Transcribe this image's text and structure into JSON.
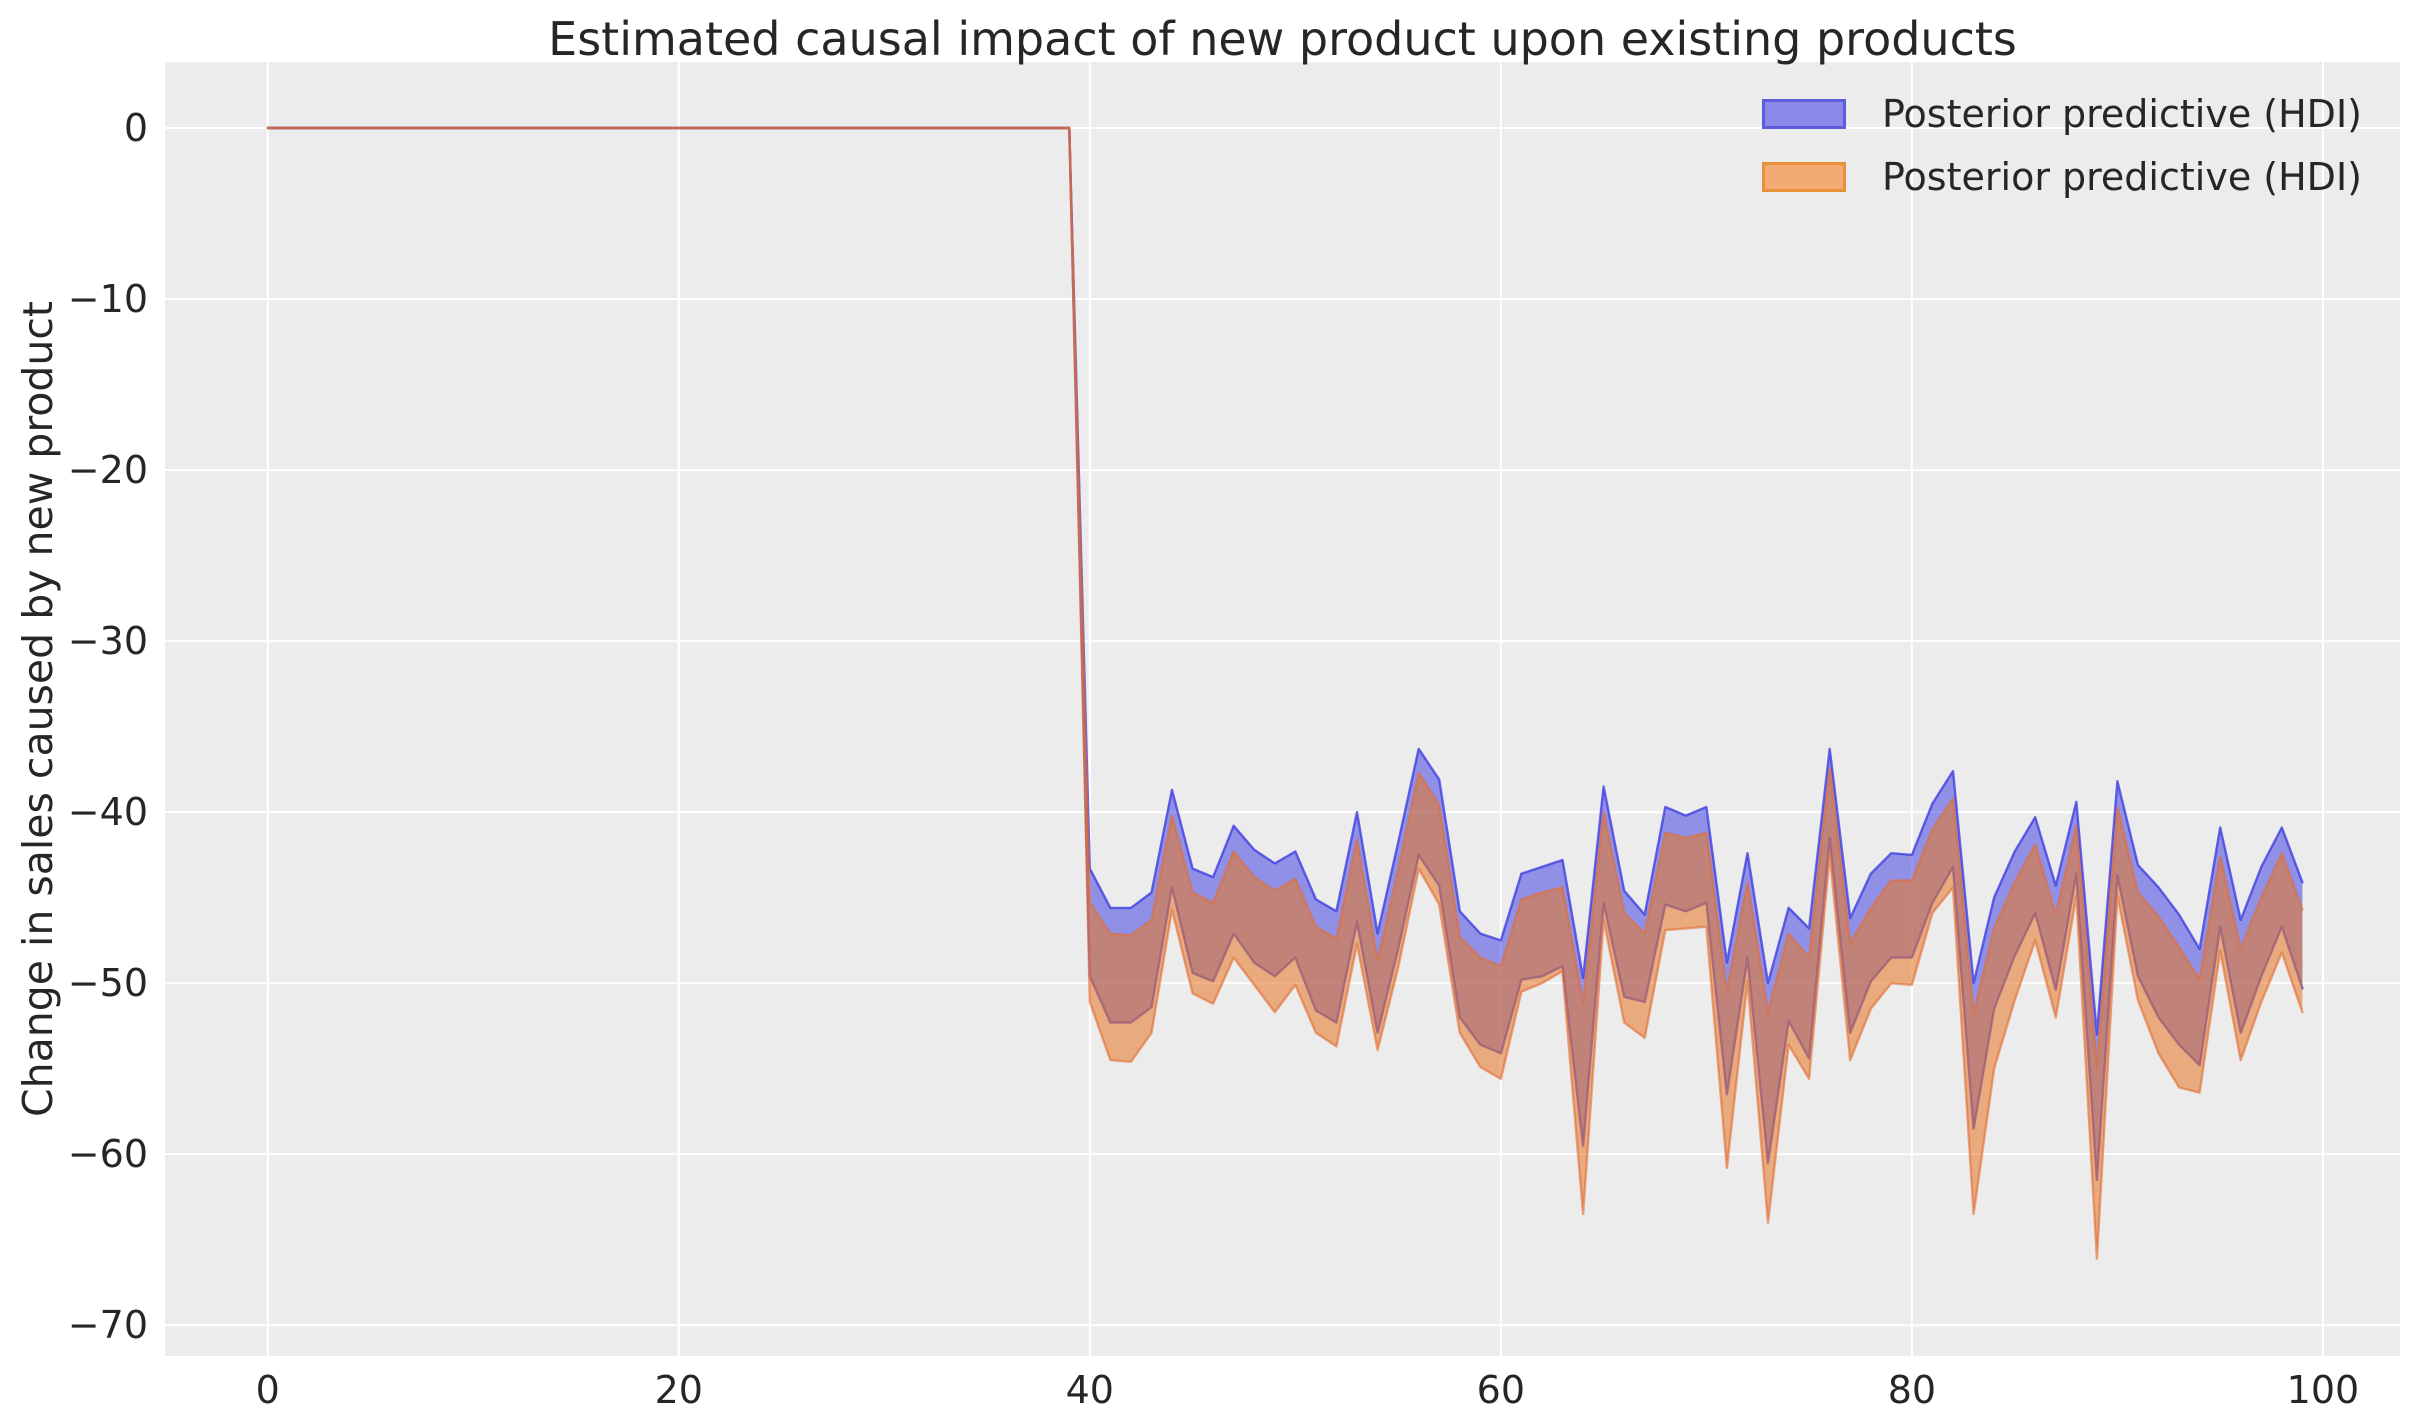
{
  "legend": {
    "items": [
      {
        "label": "Posterior predictive (HDI)",
        "fill": "#8a8ae8",
        "edge": "#5c5cdc"
      },
      {
        "label": "Posterior predictive (HDI)",
        "fill": "#f2ab72",
        "edge": "#e8913c"
      }
    ]
  },
  "colors": {
    "figure_bg": "#ffffff",
    "axes_bg": "#ececec",
    "grid": "#ffffff",
    "text": "#262626",
    "blue_fill": "rgba(70,70,225,0.55)",
    "blue_edge": "rgba(60,60,225,0.78)",
    "orange_fill": "rgba(230,120,40,0.57)",
    "orange_edge": "rgba(225,110,55,0.62)"
  },
  "chart_data": {
    "type": "area",
    "title": "Estimated causal impact of new product upon existing products",
    "xlabel": "",
    "ylabel": "Change in sales caused by new product",
    "x_ticks": [
      0,
      20,
      40,
      60,
      80,
      100
    ],
    "y_ticks": [
      0,
      -10,
      -20,
      -30,
      -40,
      -50,
      -60,
      -70
    ],
    "xlim": [
      -5.0,
      103.75
    ],
    "ylim": [
      -71.8,
      3.86
    ],
    "grid": true,
    "legend_position": "upper right",
    "pre_period": {
      "x_start": 0,
      "x_end": 39,
      "value": 0,
      "note": "both HDI bands have zero width before the intervention at x=40"
    },
    "x_post": [
      40,
      41,
      42,
      43,
      44,
      45,
      46,
      47,
      48,
      49,
      50,
      51,
      52,
      53,
      54,
      55,
      56,
      57,
      58,
      59,
      60,
      61,
      62,
      63,
      64,
      65,
      66,
      67,
      68,
      69,
      70,
      71,
      72,
      73,
      74,
      75,
      76,
      77,
      78,
      79,
      80,
      81,
      82,
      83,
      84,
      85,
      86,
      87,
      88,
      89,
      90,
      91,
      92,
      93,
      94,
      95,
      96,
      97,
      98,
      99
    ],
    "series": [
      {
        "name": "Posterior predictive (HDI)",
        "band": "blue",
        "hi": [
          -43.3,
          -45.6,
          -45.6,
          -44.7,
          -38.7,
          -43.3,
          -43.8,
          -40.8,
          -42.2,
          -43.0,
          -42.3,
          -45.1,
          -45.8,
          -40.0,
          -47.1,
          -41.8,
          -36.3,
          -38.1,
          -45.8,
          -47.1,
          -47.5,
          -43.6,
          -43.2,
          -42.8,
          -49.7,
          -38.5,
          -44.6,
          -46.0,
          -39.7,
          -40.2,
          -39.7,
          -48.8,
          -42.4,
          -50.0,
          -45.6,
          -46.8,
          -36.3,
          -46.2,
          -43.6,
          -42.4,
          -42.5,
          -39.5,
          -37.6,
          -50.0,
          -45.0,
          -42.3,
          -40.3,
          -44.3,
          -39.4,
          -53.0,
          -38.2,
          -43.1,
          -44.4,
          -46.0,
          -48.0,
          -40.9,
          -46.3,
          -43.2,
          -40.9,
          -44.1
        ],
        "lo": [
          -49.6,
          -52.3,
          -52.3,
          -51.4,
          -44.4,
          -49.4,
          -49.9,
          -47.1,
          -48.8,
          -49.6,
          -48.5,
          -51.6,
          -52.3,
          -46.4,
          -52.9,
          -48.0,
          -42.5,
          -44.3,
          -52.0,
          -53.6,
          -54.1,
          -49.8,
          -49.6,
          -49.0,
          -59.5,
          -45.3,
          -50.8,
          -51.1,
          -45.4,
          -45.8,
          -45.3,
          -56.5,
          -48.5,
          -60.5,
          -52.2,
          -54.4,
          -41.5,
          -52.9,
          -49.9,
          -48.5,
          -48.5,
          -45.3,
          -43.2,
          -58.5,
          -51.5,
          -48.4,
          -45.9,
          -50.4,
          -43.6,
          -61.5,
          -43.7,
          -49.6,
          -52.0,
          -53.6,
          -54.8,
          -46.7,
          -52.9,
          -49.6,
          -46.7,
          -50.3
        ]
      },
      {
        "name": "Posterior predictive (HDI)",
        "band": "orange",
        "hi": [
          -45.3,
          -47.1,
          -47.2,
          -46.3,
          -40.2,
          -44.7,
          -45.3,
          -42.3,
          -43.8,
          -44.6,
          -43.9,
          -46.7,
          -47.4,
          -41.6,
          -48.7,
          -43.4,
          -37.7,
          -39.6,
          -47.3,
          -48.5,
          -49.0,
          -45.1,
          -44.7,
          -44.4,
          -51.2,
          -40.0,
          -45.9,
          -47.1,
          -41.2,
          -41.5,
          -41.2,
          -50.5,
          -44.1,
          -51.7,
          -47.1,
          -48.5,
          -37.4,
          -47.7,
          -45.6,
          -44.0,
          -44.0,
          -41.0,
          -39.2,
          -51.8,
          -46.8,
          -44.1,
          -41.9,
          -46.0,
          -40.8,
          -54.9,
          -39.7,
          -44.7,
          -46.1,
          -47.9,
          -49.8,
          -42.6,
          -48.0,
          -45.0,
          -42.4,
          -45.7
        ],
        "lo": [
          -51.1,
          -54.5,
          -54.6,
          -52.9,
          -45.7,
          -50.6,
          -51.2,
          -48.5,
          -50.1,
          -51.7,
          -50.1,
          -52.9,
          -53.7,
          -47.7,
          -53.9,
          -49.1,
          -43.3,
          -45.4,
          -52.9,
          -54.9,
          -55.6,
          -50.5,
          -50.0,
          -49.3,
          -63.5,
          -46.3,
          -52.3,
          -53.2,
          -46.9,
          -46.8,
          -46.7,
          -60.8,
          -49.9,
          -64.0,
          -53.6,
          -55.6,
          -42.5,
          -54.5,
          -51.5,
          -50.0,
          -50.1,
          -45.9,
          -44.4,
          -63.5,
          -55.0,
          -51.0,
          -47.5,
          -52.0,
          -44.9,
          -66.1,
          -44.9,
          -51.0,
          -54.1,
          -56.1,
          -56.4,
          -48.1,
          -54.5,
          -51.1,
          -48.2,
          -51.7
        ]
      }
    ]
  }
}
